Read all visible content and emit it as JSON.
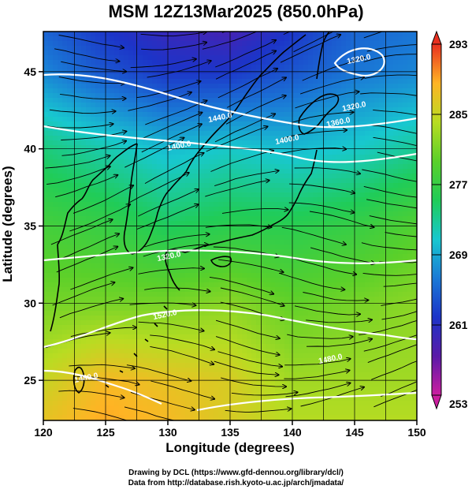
{
  "title": "MSM 12Z13Mar2025 (850.0hPa)",
  "credits": {
    "line1": "Drawing by DCL (https://www.gfd-dennou.org/library/dcl/)",
    "line2": "Data from http://database.rish.kyoto-u.ac.jp/arch/jmadata/"
  },
  "chart_data": {
    "type": "heatmap",
    "title": "MSM 12Z13Mar2025 (850.0hPa)",
    "xlabel": "Longitude (degrees)",
    "ylabel": "Latitude  (degrees)",
    "xlim": [
      120,
      150
    ],
    "ylim": [
      22.4,
      47.6
    ],
    "x_ticks": [
      120,
      125,
      130,
      135,
      140,
      145,
      150
    ],
    "y_ticks": [
      25,
      30,
      35,
      40,
      45
    ],
    "grid": true,
    "colorbar": {
      "min": 253,
      "max": 293,
      "tick_values": [
        253,
        261,
        269,
        277,
        285,
        293
      ],
      "colors": [
        "#cc1ea0",
        "#5a1aa8",
        "#1c34c8",
        "#1a7ad6",
        "#18c8cf",
        "#20cc58",
        "#5ad02a",
        "#b8dc22",
        "#ffb424",
        "#e83020"
      ]
    },
    "temperature_field_K": {
      "description": "850 hPa temperature, shaded",
      "lon": [
        120,
        125,
        130,
        135,
        140,
        145,
        150
      ],
      "lat": [
        47.6,
        45,
        40,
        35,
        30,
        25,
        22.4
      ],
      "values": [
        [
          265,
          262,
          260,
          259,
          262,
          265,
          266
        ],
        [
          267,
          264,
          262,
          262,
          264,
          266,
          267
        ],
        [
          274,
          272,
          270,
          271,
          270,
          271,
          273
        ],
        [
          278,
          277,
          275,
          276,
          276,
          277,
          279
        ],
        [
          281,
          281,
          281,
          282,
          280,
          281,
          282
        ],
        [
          285,
          288,
          287,
          286,
          283,
          283,
          283
        ],
        [
          287,
          289,
          288,
          286,
          284,
          284,
          284
        ]
      ]
    },
    "contour_labels": [
      "1320.0",
      "1440.0",
      "1400.0",
      "1360.0",
      "1320.0",
      "1320.0",
      "1400.0",
      "1520.0",
      "1480.0",
      "1480.0"
    ]
  }
}
